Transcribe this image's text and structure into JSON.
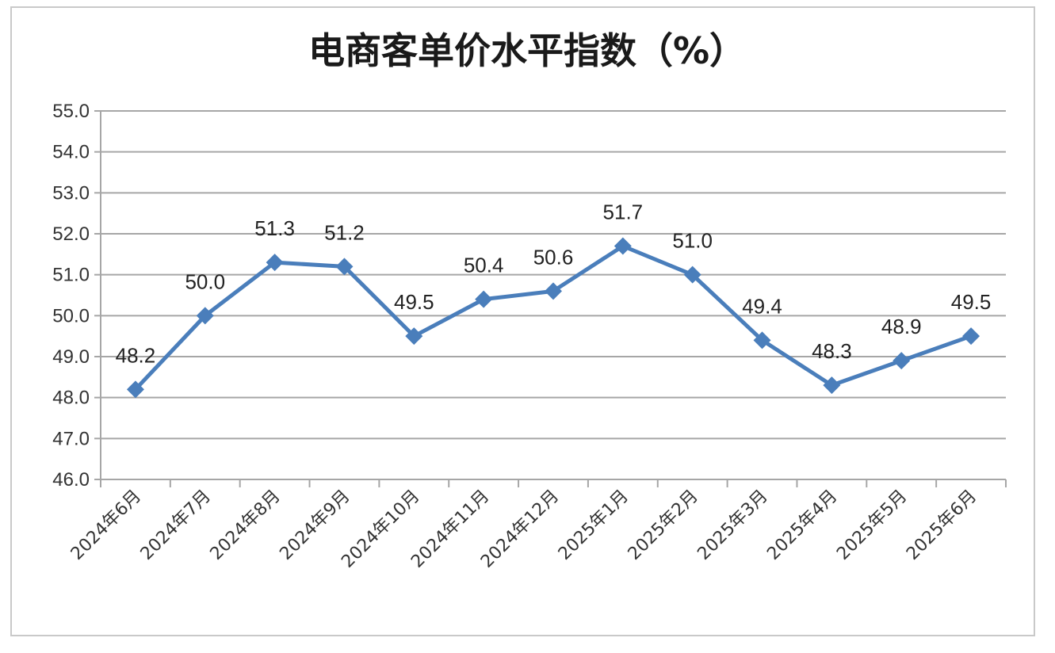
{
  "chart_data": {
    "type": "line",
    "title": "电商客单价水平指数（%）",
    "xlabel": "",
    "ylabel": "",
    "ylim": [
      46.0,
      55.0
    ],
    "y_ticks": [
      "46.0",
      "47.0",
      "48.0",
      "49.0",
      "50.0",
      "51.0",
      "52.0",
      "53.0",
      "54.0",
      "55.0"
    ],
    "grid": true,
    "legend": "none",
    "categories": [
      "2024年6月",
      "2024年7月",
      "2024年8月",
      "2024年9月",
      "2024年10月",
      "2024年11月",
      "2024年12月",
      "2025年1月",
      "2025年2月",
      "2025年3月",
      "2025年4月",
      "2025年5月",
      "2025年6月"
    ],
    "series": [
      {
        "values": [
          48.2,
          50.0,
          51.3,
          51.2,
          49.5,
          50.4,
          50.6,
          51.7,
          51.0,
          49.4,
          48.3,
          48.9,
          49.5
        ],
        "labels": [
          "48.2",
          "50.0",
          "51.3",
          "51.2",
          "49.5",
          "50.4",
          "50.6",
          "51.7",
          "51.0",
          "49.4",
          "48.3",
          "48.9",
          "49.5"
        ],
        "color": "#4a7ebb",
        "marker": "diamond"
      }
    ]
  }
}
